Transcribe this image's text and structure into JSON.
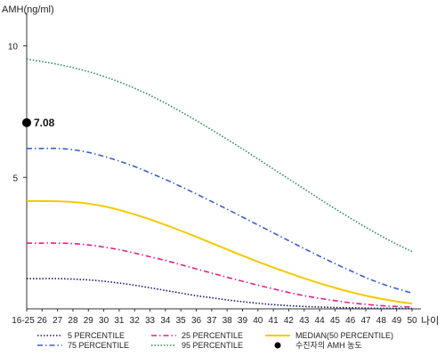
{
  "chart_data": {
    "type": "line",
    "title": "",
    "ylabel": "AMH(ng/ml)",
    "xlabel": "나이",
    "ylim": [
      0,
      11
    ],
    "yticks": [
      5,
      10
    ],
    "x": [
      "16-25",
      "26",
      "27",
      "28",
      "29",
      "30",
      "31",
      "32",
      "33",
      "34",
      "35",
      "36",
      "37",
      "38",
      "39",
      "40",
      "41",
      "42",
      "43",
      "44",
      "45",
      "46",
      "47",
      "48",
      "49",
      "50"
    ],
    "series": [
      {
        "name": "5 PERCENTILE",
        "color": "#1a1a6e",
        "dash": "dotted",
        "values": [
          1.15,
          1.15,
          1.15,
          1.13,
          1.1,
          1.05,
          0.98,
          0.9,
          0.8,
          0.7,
          0.6,
          0.5,
          0.42,
          0.34,
          0.27,
          0.21,
          0.16,
          0.12,
          0.09,
          0.07,
          0.05,
          0.04,
          0.03,
          0.02,
          0.02,
          0.01
        ]
      },
      {
        "name": "25 PERCENTILE",
        "color": "#e0218a",
        "dash": "dashdot",
        "values": [
          2.5,
          2.5,
          2.5,
          2.48,
          2.43,
          2.35,
          2.25,
          2.12,
          1.98,
          1.84,
          1.68,
          1.52,
          1.36,
          1.2,
          1.05,
          0.9,
          0.76,
          0.62,
          0.5,
          0.4,
          0.31,
          0.23,
          0.17,
          0.12,
          0.09,
          0.07
        ]
      },
      {
        "name": "MEDIAN(50 PERCENTILE)",
        "color": "#f5c800",
        "dash": "solid",
        "values": [
          4.1,
          4.1,
          4.09,
          4.06,
          4.0,
          3.9,
          3.76,
          3.59,
          3.4,
          3.19,
          2.97,
          2.74,
          2.5,
          2.26,
          2.02,
          1.79,
          1.57,
          1.36,
          1.16,
          0.97,
          0.8,
          0.64,
          0.5,
          0.38,
          0.28,
          0.2
        ]
      },
      {
        "name": "75 PERCENTILE",
        "color": "#3a5fc8",
        "dash": "dashdot",
        "values": [
          6.1,
          6.1,
          6.1,
          6.05,
          5.95,
          5.8,
          5.62,
          5.41,
          5.17,
          4.92,
          4.65,
          4.37,
          4.08,
          3.79,
          3.49,
          3.19,
          2.89,
          2.59,
          2.29,
          2.0,
          1.72,
          1.45,
          1.19,
          0.96,
          0.77,
          0.6
        ]
      },
      {
        "name": "95 PERCENTILE",
        "color": "#2e8b57",
        "dash": "dotted",
        "values": [
          9.5,
          9.4,
          9.3,
          9.17,
          9.02,
          8.84,
          8.63,
          8.39,
          8.12,
          7.82,
          7.5,
          7.16,
          6.81,
          6.45,
          6.08,
          5.7,
          5.32,
          4.94,
          4.56,
          4.18,
          3.81,
          3.45,
          3.1,
          2.77,
          2.46,
          2.18
        ]
      }
    ],
    "patient_marker": {
      "label": "수진자의 AMH 농도",
      "value": 7.08,
      "value_label": "7.08",
      "x": "16-25",
      "color": "#000000"
    },
    "legend": {
      "placement": "bottom"
    },
    "grid": false
  }
}
